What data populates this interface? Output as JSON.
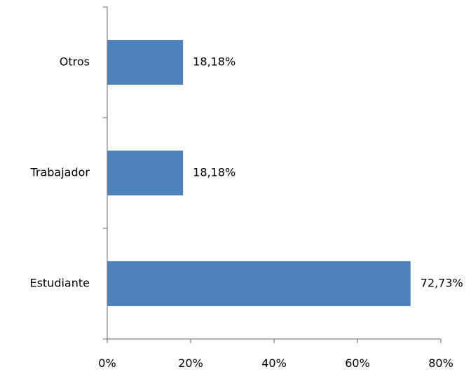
{
  "chart_data": {
    "type": "bar",
    "orientation": "horizontal",
    "categories": [
      "Otros",
      "Trabajador",
      "Estudiante"
    ],
    "values": [
      18.18,
      18.18,
      72.73
    ],
    "data_labels": [
      "18,18%",
      "18,18%",
      "72,73%"
    ],
    "x_ticks": [
      "0%",
      "20%",
      "40%",
      "60%",
      "80%"
    ],
    "xlim": [
      0,
      80
    ],
    "title": "",
    "xlabel": "",
    "ylabel": "",
    "grid": false,
    "legend": "none",
    "colors": {
      "bar": "#4F81BD",
      "axis": "#808080"
    }
  }
}
